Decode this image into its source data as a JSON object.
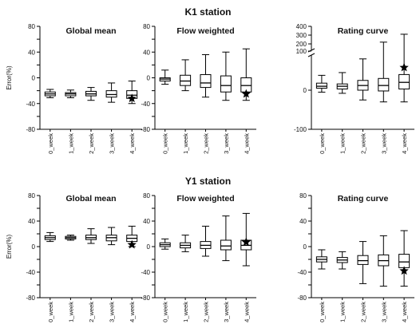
{
  "sections": [
    {
      "station_label": "K1 station",
      "charts": [
        {
          "type": "box",
          "title": "Global mean",
          "ylabel": "Error(%)",
          "ylim": [
            -80,
            80
          ],
          "yticks": [
            -80,
            -60,
            -40,
            -20,
            0,
            20,
            40,
            60,
            80
          ],
          "ytick_labels": [
            "-80",
            "",
            "-40",
            "",
            "0",
            "",
            "40",
            "",
            "80"
          ],
          "categories": [
            "0_week",
            "1_week",
            "2_week",
            "3_week",
            "4_week"
          ],
          "boxes": [
            {
              "whislo": -31,
              "q1": -28,
              "med": -25,
              "q3": -22,
              "whishi": -18
            },
            {
              "whislo": -31,
              "q1": -28,
              "med": -25,
              "q3": -23,
              "whishi": -19
            },
            {
              "whislo": -35,
              "q1": -28,
              "med": -25,
              "q3": -21,
              "whishi": -15
            },
            {
              "whislo": -38,
              "q1": -30,
              "med": -26,
              "q3": -20,
              "whishi": -8
            },
            {
              "whislo": -40,
              "q1": -32,
              "med": -27,
              "q3": -20,
              "whishi": -5
            }
          ],
          "star": {
            "category": "4_week",
            "value": -32
          }
        },
        {
          "type": "box",
          "title": "Flow weighted",
          "ylabel": "",
          "ylim": [
            -80,
            80
          ],
          "yticks": [
            -80,
            -60,
            -40,
            -20,
            0,
            20,
            40,
            60,
            80
          ],
          "ytick_labels": [
            "-80",
            "",
            "-40",
            "",
            "0",
            "",
            "40",
            "",
            "80"
          ],
          "categories": [
            "0_week",
            "1_week",
            "2_week",
            "3_week",
            "4_week"
          ],
          "boxes": [
            {
              "whislo": -10,
              "q1": -5,
              "med": -2,
              "q3": 0,
              "whishi": 12
            },
            {
              "whislo": -20,
              "q1": -12,
              "med": -5,
              "q3": 4,
              "whishi": 28
            },
            {
              "whislo": -30,
              "q1": -15,
              "med": -8,
              "q3": 5,
              "whishi": 36
            },
            {
              "whislo": -35,
              "q1": -22,
              "med": -12,
              "q3": 3,
              "whishi": 40
            },
            {
              "whislo": -35,
              "q1": -22,
              "med": -12,
              "q3": 0,
              "whishi": 45
            }
          ],
          "star": {
            "category": "4_week",
            "value": -25
          }
        },
        {
          "type": "box",
          "title": "Rating curve",
          "ylabel": "",
          "ylim": [
            -100,
            100
          ],
          "axis_break": true,
          "upper_ylim": [
            100,
            400
          ],
          "yticks": [
            -100,
            0,
            100
          ],
          "ytick_labels": [
            "-100",
            "0",
            "100"
          ],
          "upper_yticks": [
            100,
            200,
            300,
            400
          ],
          "upper_ytick_labels": [
            "100",
            "200",
            "300",
            "400"
          ],
          "categories": [
            "0_week",
            "1_week",
            "2_week",
            "3_week",
            "4_week"
          ],
          "boxes": [
            {
              "whislo": -5,
              "q1": 5,
              "med": 10,
              "q3": 18,
              "whishi": 38
            },
            {
              "whislo": -8,
              "q1": 3,
              "med": 10,
              "q3": 16,
              "whishi": 45
            },
            {
              "whislo": -25,
              "q1": 0,
              "med": 12,
              "q3": 25,
              "whishi": 80
            },
            {
              "whislo": -30,
              "q1": -2,
              "med": 12,
              "q3": 30,
              "whishi": 220
            },
            {
              "whislo": -30,
              "q1": 3,
              "med": 20,
              "q3": 40,
              "whishi": 310
            }
          ],
          "star": {
            "category": "4_week",
            "value": 58
          }
        }
      ]
    },
    {
      "station_label": "Y1 station",
      "charts": [
        {
          "type": "box",
          "title": "Global mean",
          "ylabel": "Error(%)",
          "ylim": [
            -80,
            80
          ],
          "yticks": [
            -80,
            -60,
            -40,
            -20,
            0,
            20,
            40,
            60,
            80
          ],
          "ytick_labels": [
            "-80",
            "",
            "-40",
            "",
            "0",
            "",
            "40",
            "",
            "80"
          ],
          "categories": [
            "0_week",
            "1_week",
            "2_week",
            "3_week",
            "4_week"
          ],
          "boxes": [
            {
              "whislo": 8,
              "q1": 11,
              "med": 14,
              "q3": 17,
              "whishi": 22
            },
            {
              "whislo": 10,
              "q1": 12,
              "med": 14,
              "q3": 16,
              "whishi": 18
            },
            {
              "whislo": 5,
              "q1": 11,
              "med": 14,
              "q3": 18,
              "whishi": 28
            },
            {
              "whislo": 3,
              "q1": 9,
              "med": 14,
              "q3": 18,
              "whishi": 30
            },
            {
              "whislo": 0,
              "q1": 8,
              "med": 13,
              "q3": 18,
              "whishi": 32
            }
          ],
          "star": {
            "category": "4_week",
            "value": 3
          }
        },
        {
          "type": "box",
          "title": "Flow weighted",
          "ylabel": "",
          "ylim": [
            -80,
            80
          ],
          "yticks": [
            -80,
            -60,
            -40,
            -20,
            0,
            20,
            40,
            60,
            80
          ],
          "ytick_labels": [
            "-80",
            "",
            "-40",
            "",
            "0",
            "",
            "40",
            "",
            "80"
          ],
          "categories": [
            "0_week",
            "1_week",
            "2_week",
            "3_week",
            "4_week"
          ],
          "boxes": [
            {
              "whislo": -4,
              "q1": 0,
              "med": 3,
              "q3": 6,
              "whishi": 12
            },
            {
              "whislo": -8,
              "q1": -2,
              "med": 2,
              "q3": 6,
              "whishi": 18
            },
            {
              "whislo": -15,
              "q1": -3,
              "med": 2,
              "q3": 8,
              "whishi": 32
            },
            {
              "whislo": -22,
              "q1": -5,
              "med": 1,
              "q3": 10,
              "whishi": 48
            },
            {
              "whislo": -30,
              "q1": -5,
              "med": 2,
              "q3": 10,
              "whishi": 52
            }
          ],
          "star": {
            "category": "4_week",
            "value": 7
          }
        },
        {
          "type": "box",
          "title": "Rating curve",
          "ylabel": "",
          "ylim": [
            -80,
            80
          ],
          "yticks": [
            -80,
            -60,
            -40,
            -20,
            0,
            20,
            40,
            60,
            80
          ],
          "ytick_labels": [
            "-80",
            "",
            "-40",
            "",
            "0",
            "",
            "40",
            "",
            "80"
          ],
          "categories": [
            "0_week",
            "1_week",
            "2_week",
            "3_week",
            "4_week"
          ],
          "boxes": [
            {
              "whislo": -35,
              "q1": -24,
              "med": -20,
              "q3": -16,
              "whishi": -5
            },
            {
              "whislo": -35,
              "q1": -25,
              "med": -21,
              "q3": -17,
              "whishi": -8
            },
            {
              "whislo": -58,
              "q1": -28,
              "med": -22,
              "q3": -14,
              "whishi": 8
            },
            {
              "whislo": -62,
              "q1": -30,
              "med": -22,
              "q3": -13,
              "whishi": 17
            },
            {
              "whislo": -62,
              "q1": -33,
              "med": -24,
              "q3": -12,
              "whishi": 25
            }
          ],
          "star": {
            "category": "4_week",
            "value": -38
          }
        }
      ]
    }
  ]
}
